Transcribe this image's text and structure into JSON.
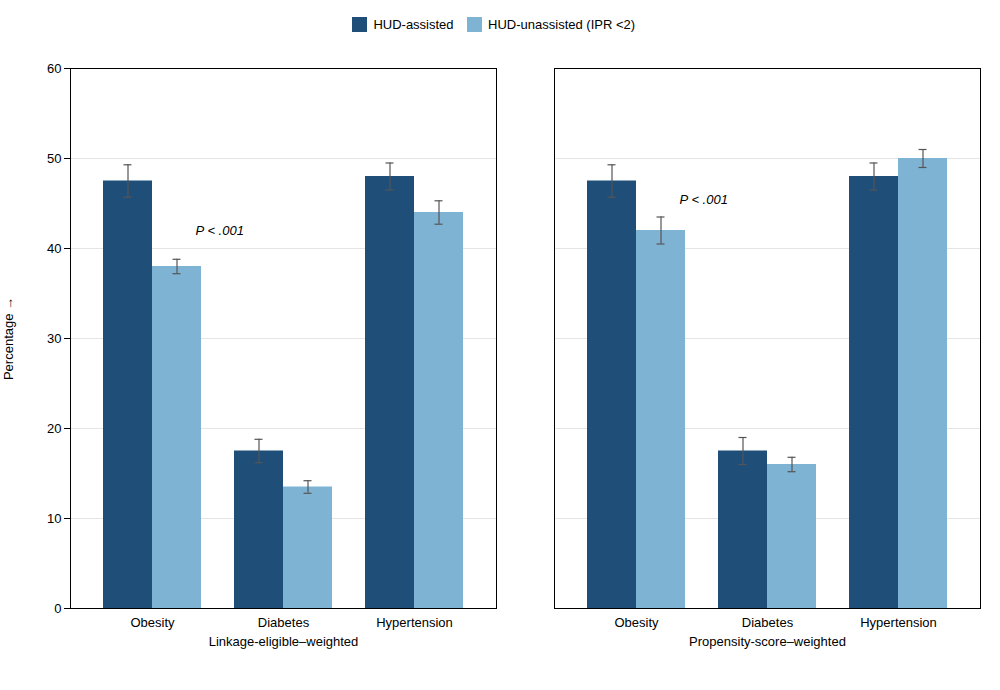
{
  "chart_data": {
    "type": "bar",
    "ylabel": "Percentage",
    "ylim": [
      0,
      60
    ],
    "yticks": [
      0,
      10,
      20,
      30,
      40,
      50,
      60
    ],
    "grid": true,
    "legend": "top",
    "panels": [
      {
        "label": "Linkage-eligible–weighted",
        "categories": [
          "Obesity",
          "Diabetes",
          "Hypertension"
        ],
        "series": [
          {
            "name": "HUD-assisted",
            "color": "#1f4e79",
            "values": [
              47.5,
              17.5,
              48.0
            ],
            "errors": [
              1.8,
              1.3,
              1.5
            ]
          },
          {
            "name": "HUD-unassisted (IPR <2)",
            "color": "#7fb3d3",
            "values": [
              38.0,
              13.5,
              44.0
            ],
            "errors": [
              0.8,
              0.7,
              1.3
            ]
          }
        ],
        "annotations": [
          {
            "text": "P < .001",
            "category": "Obesity",
            "y": 41.5
          }
        ]
      },
      {
        "label": "Propensity-score–weighted",
        "categories": [
          "Obesity",
          "Diabetes",
          "Hypertension"
        ],
        "series": [
          {
            "name": "HUD-assisted",
            "color": "#1f4e79",
            "values": [
              47.5,
              17.5,
              48.0
            ],
            "errors": [
              1.8,
              1.5,
              1.5
            ]
          },
          {
            "name": "HUD-unassisted (IPR <2)",
            "color": "#7fb3d3",
            "values": [
              42.0,
              16.0,
              50.0
            ],
            "errors": [
              1.5,
              0.8,
              1.0
            ]
          }
        ],
        "annotations": [
          {
            "text": "P < .001",
            "category": "Obesity",
            "y": 45.0
          }
        ]
      }
    ]
  }
}
